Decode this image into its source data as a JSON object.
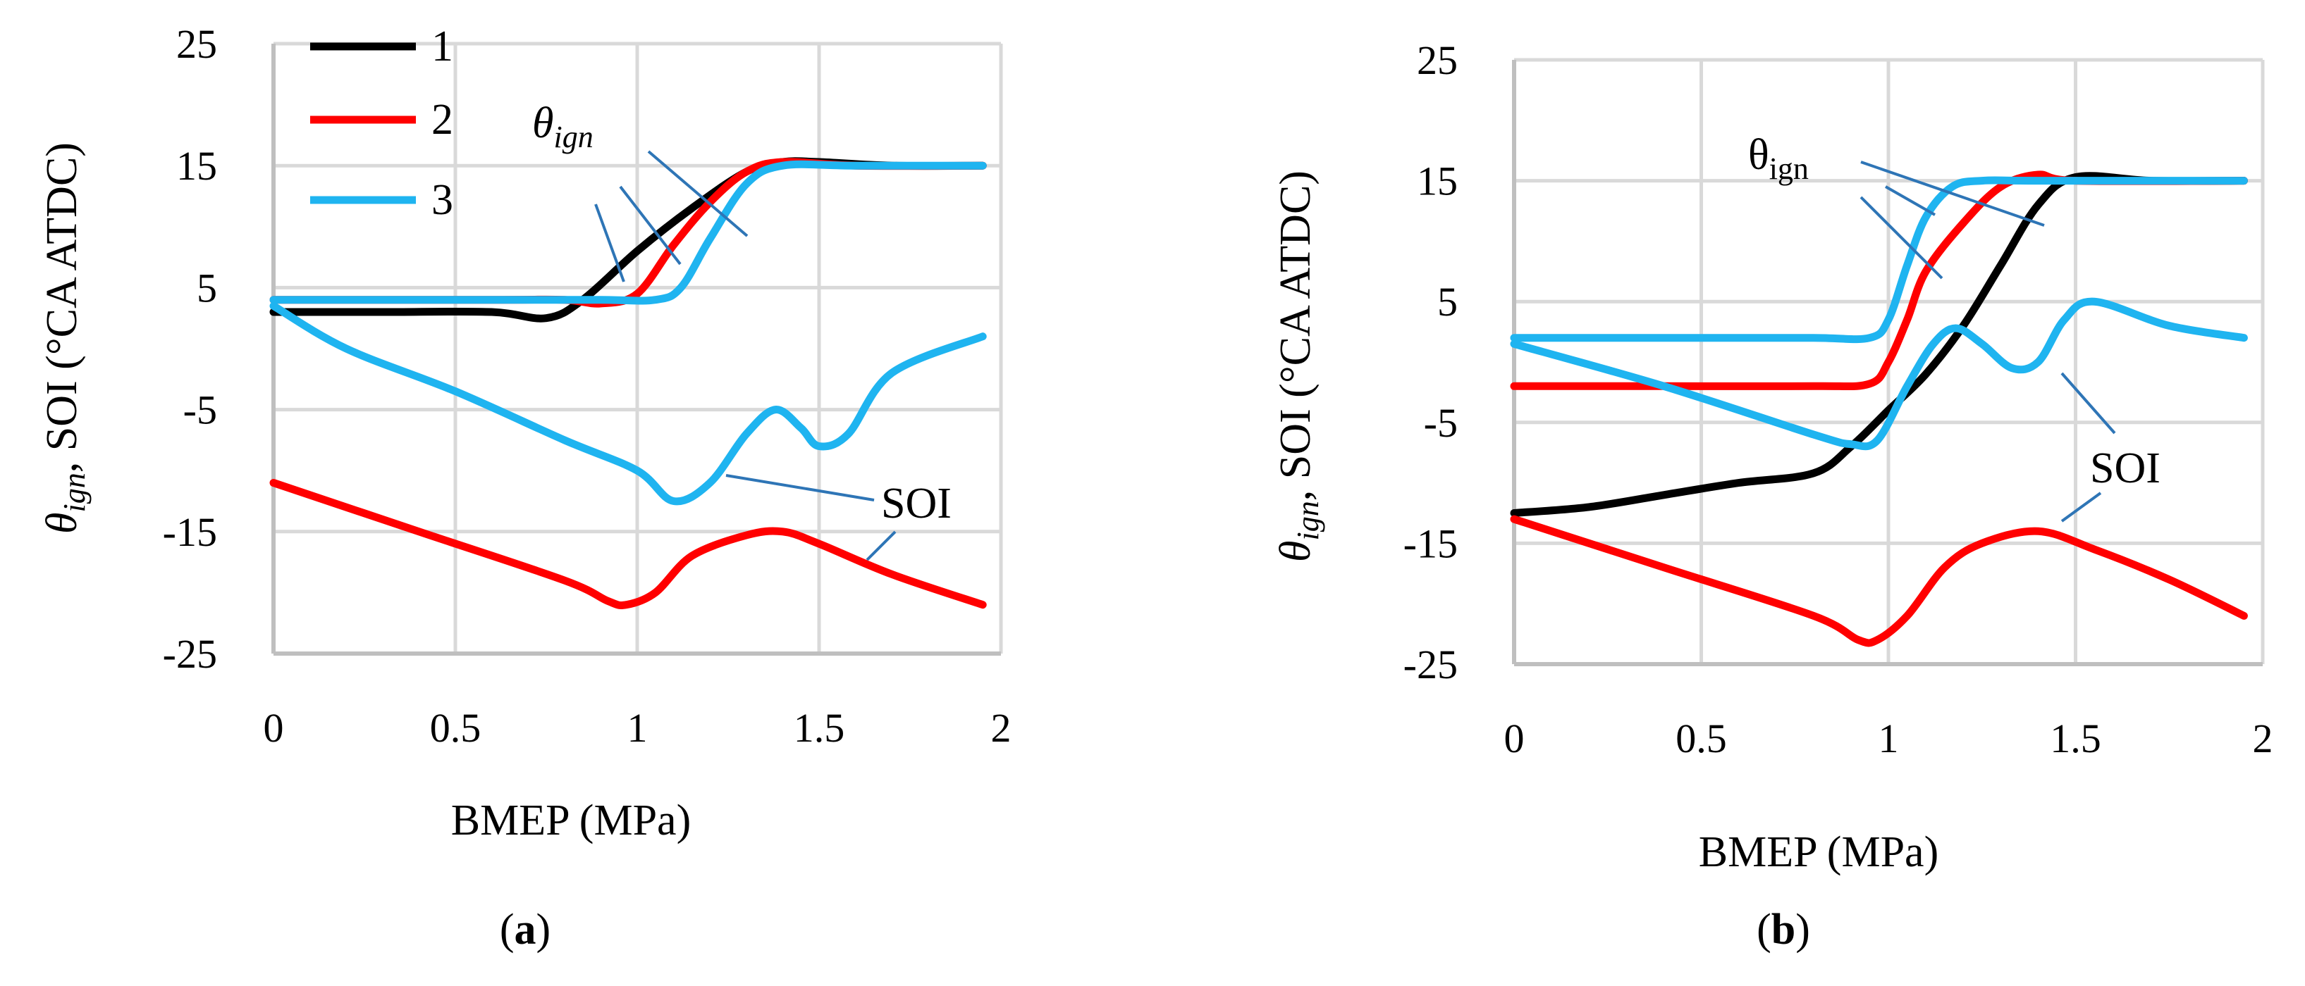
{
  "colors": {
    "s1": "#000000",
    "s2": "#ff0000",
    "s3": "#1fb4f0",
    "leader": "#2e75b6"
  },
  "legend": [
    "1",
    "2",
    "3"
  ],
  "chart_data": [
    {
      "type": "line",
      "id": "a",
      "caption": {
        "open": "(",
        "label": "a",
        "close": ")"
      },
      "xlabel": "BMEP (MPa)",
      "ylabel": {
        "theta": "θ",
        "sub": "ign",
        "rest": ", SOI (°CA ATDC)"
      },
      "xlim": [
        0,
        2
      ],
      "ylim": [
        -25,
        25
      ],
      "xticks": [
        "0",
        "0.5",
        "1",
        "1.5",
        "2"
      ],
      "yticks": [
        "25",
        "15",
        "5",
        "-5",
        "-15",
        "-25"
      ],
      "grid": true,
      "legend_placement": "top-left",
      "annotations": {
        "theta": {
          "base": "θ",
          "sub": "ign"
        },
        "soi": "SOI"
      },
      "series": [
        {
          "name": "1",
          "x": [
            0,
            0.3,
            0.6,
            0.75,
            0.85,
            1.0,
            1.15,
            1.3,
            1.4,
            1.5,
            1.7,
            1.95
          ],
          "y": [
            3,
            3,
            3,
            2.5,
            4,
            8,
            11.5,
            14.5,
            15.3,
            15.3,
            15,
            15
          ]
        },
        {
          "name": "2",
          "x": [
            0,
            0.6,
            0.8,
            0.9,
            1.0,
            1.1,
            1.2,
            1.3,
            1.4,
            1.6,
            1.95
          ],
          "y": [
            4,
            4,
            4,
            3.7,
            4.5,
            8.5,
            12,
            14.5,
            15.3,
            15,
            15
          ]
        },
        {
          "name": "3",
          "x": [
            0,
            0.6,
            0.9,
            1.05,
            1.12,
            1.2,
            1.3,
            1.4,
            1.6,
            1.95
          ],
          "y": [
            4,
            4,
            4,
            4,
            5,
            9,
            13.5,
            15,
            15,
            15
          ]
        },
        {
          "name": "2",
          "x": [
            0,
            0.4,
            0.8,
            0.92,
            0.97,
            1.05,
            1.15,
            1.3,
            1.4,
            1.5,
            1.7,
            1.95
          ],
          "y": [
            -11,
            -15,
            -19,
            -20.7,
            -21,
            -20,
            -17,
            -15.3,
            -15,
            -16,
            -18.5,
            -21
          ]
        },
        {
          "name": "3",
          "x": [
            0,
            0.2,
            0.5,
            0.8,
            1.0,
            1.1,
            1.2,
            1.3,
            1.38,
            1.45,
            1.5,
            1.58,
            1.7,
            1.95
          ],
          "y": [
            3.5,
            0,
            -3.5,
            -7.5,
            -10,
            -12.5,
            -11,
            -7,
            -5,
            -6.5,
            -8,
            -7,
            -2,
            1
          ]
        }
      ]
    },
    {
      "type": "line",
      "id": "b",
      "caption": {
        "open": "(",
        "label": "b",
        "close": ")"
      },
      "xlabel": "BMEP (MPa)",
      "ylabel": {
        "theta": "θ",
        "sub": "ign",
        "rest": ", SOI (°CA ATDC)"
      },
      "xlim": [
        0,
        2
      ],
      "ylim": [
        -25,
        25
      ],
      "xticks": [
        "0",
        "0.5",
        "1",
        "1.5",
        "2"
      ],
      "yticks": [
        "25",
        "15",
        "5",
        "-5",
        "-15",
        "-25"
      ],
      "grid": true,
      "annotations": {
        "theta": {
          "base": "θ",
          "sub": "ign"
        },
        "soi": "SOI"
      },
      "series": [
        {
          "name": "1",
          "x": [
            0,
            0.2,
            0.4,
            0.6,
            0.8,
            0.9,
            1.0,
            1.1,
            1.2,
            1.3,
            1.4,
            1.5,
            1.7,
            1.95
          ],
          "y": [
            -12.5,
            -12,
            -11,
            -10,
            -9.2,
            -7,
            -4,
            -1,
            3,
            8,
            13,
            15.3,
            15,
            15
          ]
        },
        {
          "name": "2",
          "x": [
            0,
            0.4,
            0.8,
            0.95,
            1.0,
            1.05,
            1.1,
            1.2,
            1.3,
            1.4,
            1.5,
            1.95
          ],
          "y": [
            -2,
            -2,
            -2,
            -1.8,
            0,
            3.5,
            7.5,
            11.5,
            14.5,
            15.5,
            15,
            15
          ]
        },
        {
          "name": "3",
          "x": [
            0,
            0.5,
            0.8,
            0.95,
            1.0,
            1.05,
            1.1,
            1.17,
            1.25,
            1.4,
            1.95
          ],
          "y": [
            2,
            2,
            2,
            2,
            3.5,
            8,
            12,
            14.5,
            15,
            15,
            15
          ]
        },
        {
          "name": "2",
          "x": [
            0,
            0.4,
            0.8,
            0.92,
            0.97,
            1.05,
            1.15,
            1.25,
            1.4,
            1.55,
            1.75,
            1.95
          ],
          "y": [
            -13,
            -17,
            -21,
            -23,
            -23,
            -21,
            -17,
            -15,
            -14,
            -15.5,
            -18,
            -21
          ]
        },
        {
          "name": "3",
          "x": [
            0,
            0.4,
            0.8,
            0.9,
            0.97,
            1.05,
            1.12,
            1.18,
            1.25,
            1.33,
            1.4,
            1.47,
            1.55,
            1.75,
            1.95
          ],
          "y": [
            1.5,
            -2,
            -6,
            -6.8,
            -6.5,
            -2,
            1.5,
            2.8,
            1.5,
            -0.5,
            0,
            3.5,
            5,
            3,
            2
          ]
        }
      ]
    }
  ]
}
